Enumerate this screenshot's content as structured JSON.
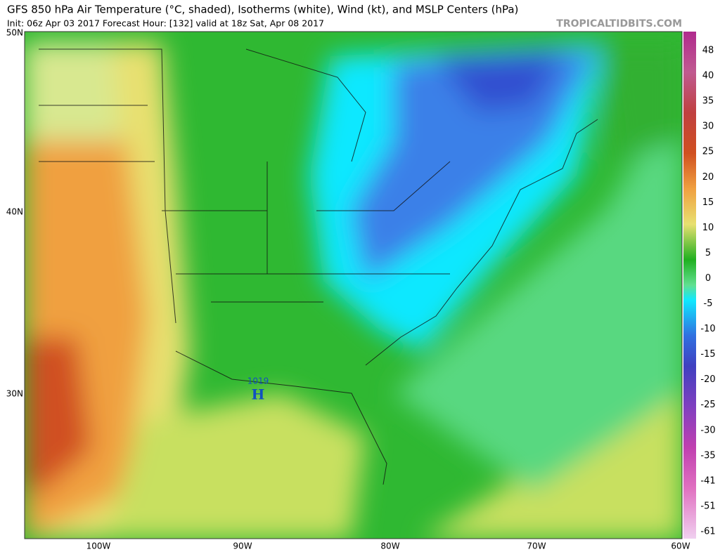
{
  "header": {
    "title": "GFS 850 hPa Air Temperature (°C, shaded), Isotherms (white), Wind (kt), and MSLP Centers (hPa)",
    "subtitle": "Init: 06z Apr 03 2017   Forecast Hour: [132]   valid at 18z Sat, Apr 08 2017",
    "brand": "TROPICALTIDBITS.COM"
  },
  "map": {
    "latitude_labels": [
      "50N",
      "40N",
      "30N"
    ],
    "longitude_labels": [
      "100W",
      "90W",
      "80W",
      "70W",
      "60W"
    ],
    "pressure_center": {
      "label": "H",
      "value": 1019
    }
  },
  "colorbar": {
    "labels": [
      48,
      40,
      35,
      30,
      25,
      20,
      15,
      10,
      5,
      0,
      -5,
      -10,
      -15,
      -20,
      -25,
      -30,
      -35,
      -41,
      -51,
      -61
    ]
  }
}
